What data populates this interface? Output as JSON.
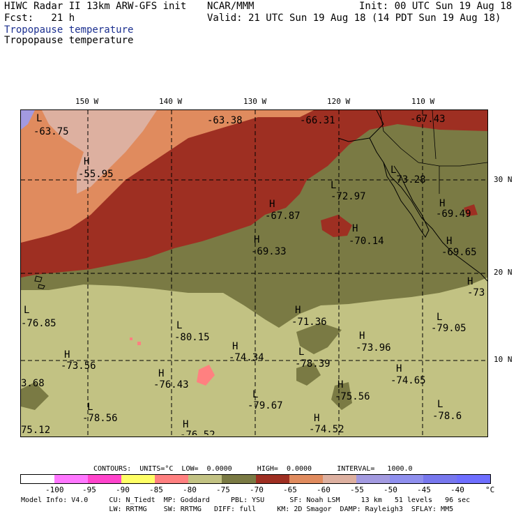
{
  "header": {
    "line1_left": "HIWC Radar II 13km ARW-GFS init",
    "line2_left": "Fcst:   21 h",
    "center1": "NCAR/MMM",
    "right1": "Init: 00 UTC Sun 19 Aug 18",
    "right2": "Valid: 21 UTC Sun 19 Aug 18 (14 PDT Sun 19 Aug 18)",
    "field1": "Tropopause temperature",
    "field2": "Tropopause temperature"
  },
  "axes": {
    "lon_labels": [
      "150 W",
      "140 W",
      "130 W",
      "120 W",
      "110 W"
    ],
    "lat_labels": [
      "30 N",
      "20 N",
      "10 N"
    ]
  },
  "extrema": [
    {
      "kind": "L",
      "value": "-63.75"
    },
    {
      "kind": "",
      "value": "-63.38"
    },
    {
      "kind": "",
      "value": "-66.31"
    },
    {
      "kind": "",
      "value": "-67.43"
    },
    {
      "kind": "H",
      "value": "-55.95"
    },
    {
      "kind": "L",
      "value": "-73.28"
    },
    {
      "kind": "L",
      "value": "-72.97"
    },
    {
      "kind": "H",
      "value": "-67.87"
    },
    {
      "kind": "H",
      "value": "-69.49"
    },
    {
      "kind": "H",
      "value": "-70.14"
    },
    {
      "kind": "H",
      "value": "-69.33"
    },
    {
      "kind": "H",
      "value": "-69.65"
    },
    {
      "kind": "H",
      "value": "-73"
    },
    {
      "kind": "L",
      "value": "-76.85"
    },
    {
      "kind": "H",
      "value": "-71.36"
    },
    {
      "kind": "L",
      "value": "-79.05"
    },
    {
      "kind": "L",
      "value": "-80.15"
    },
    {
      "kind": "H",
      "value": "-73.96"
    },
    {
      "kind": "H",
      "value": "-73.56"
    },
    {
      "kind": "H",
      "value": "-74.34"
    },
    {
      "kind": "L",
      "value": "-78.39"
    },
    {
      "kind": "H",
      "value": "-74.65"
    },
    {
      "kind": "",
      "value": "3.68"
    },
    {
      "kind": "H",
      "value": "-76.43"
    },
    {
      "kind": "H",
      "value": "-75.56"
    },
    {
      "kind": "L",
      "value": "-79.67"
    },
    {
      "kind": "L",
      "value": "-78.56"
    },
    {
      "kind": "L",
      "value": "-78.6"
    },
    {
      "kind": "",
      "value": "75.12"
    },
    {
      "kind": "H",
      "value": "-76.52"
    },
    {
      "kind": "H",
      "value": "-74.52"
    }
  ],
  "legend": {
    "contours_line": "CONTOURS:  UNITS=°C  LOW=  0.0000      HIGH=  0.0000      INTERVAL=   1000.0",
    "colors": [
      "#ffffff",
      "#ff77ff",
      "#ff44cc",
      "#ffff66",
      "#ff8080",
      "#c2c283",
      "#7a7a44",
      "#9e2f22",
      "#e08b5e",
      "#ddb0a0",
      "#a39ae0",
      "#8f8fee",
      "#7777ee",
      "#6e6eff"
    ],
    "ticks": [
      "-100",
      "-95",
      "-90",
      "-85",
      "-80",
      "-75",
      "-70",
      "-65",
      "-60",
      "-55",
      "-50",
      "-45",
      "-40"
    ],
    "unit": "°C"
  },
  "model_info": {
    "line1": "Model Info: V4.0     CU: N_Tiedt  MP: Goddard     PBL: YSU      SF: Noah LSM     13 km   51 levels   96 sec",
    "line2": "                     LW: RRTMG    SW: RRTMG   DIFF: full     KM: 2D Smagor  DAMP: Rayleigh3  SFLAY: MM5"
  }
}
